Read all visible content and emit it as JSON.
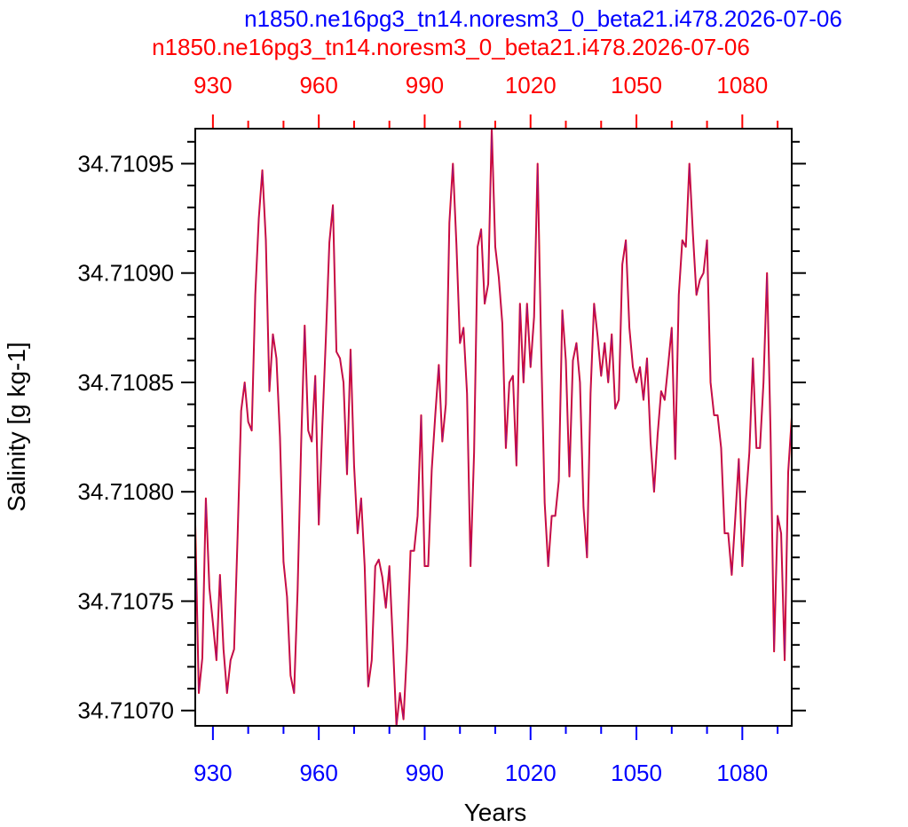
{
  "chart_data": {
    "type": "line",
    "titles": [
      {
        "text": "n1850.ne16pg3_tn14.noresm3_0_beta21.i478.2026-07-06",
        "color": "#0000ff"
      },
      {
        "text": "n1850.ne16pg3_tn14.noresm3_0_beta21.i478.2026-07-06",
        "color": "#ff0000"
      }
    ],
    "xlabel": "Years",
    "ylabel": "Salinity [g kg-1]",
    "xlim": [
      925,
      1094
    ],
    "ylim": [
      34.710693,
      34.710966
    ],
    "xticks": [
      930,
      960,
      990,
      1020,
      1050,
      1080
    ],
    "xtick_labels": [
      "930",
      "960",
      "990",
      "1020",
      "1050",
      "1080"
    ],
    "yticks": [
      34.7107,
      34.71075,
      34.7108,
      34.71085,
      34.7109,
      34.71095
    ],
    "ytick_labels": [
      "34.71070",
      "34.71075",
      "34.71080",
      "34.71085",
      "34.71090",
      "34.71095"
    ],
    "bottom_axis_color": "#0000ff",
    "top_axis_color": "#ff0000",
    "grid": false,
    "series": [
      {
        "color": "#ff0000",
        "x_start": 925,
        "values": [
          34.710785,
          34.710708,
          34.710724,
          34.710797,
          34.710756,
          34.71074,
          34.710723,
          34.710762,
          34.710728,
          34.710708,
          34.710723,
          34.710728,
          34.71078,
          34.710837,
          34.71085,
          34.710832,
          34.710828,
          34.71089,
          34.710925,
          34.710947,
          34.710915,
          34.710846,
          34.710872,
          34.710861,
          34.710825,
          34.710768,
          34.710752,
          34.710716,
          34.710708,
          34.710755,
          34.710822,
          34.710876,
          34.710828,
          34.710823,
          34.710853,
          34.710785,
          34.71083,
          34.71087,
          34.710914,
          34.710931,
          34.710864,
          34.710861,
          34.71085,
          34.710808,
          34.710865,
          34.710812,
          34.710781,
          34.710797,
          34.710766,
          34.710711,
          34.710723,
          34.710766,
          34.710769,
          34.710761,
          34.710747,
          34.710766,
          34.710731,
          34.710693,
          34.710708,
          34.710696,
          34.710728,
          34.710773,
          34.710773,
          34.710789,
          34.710835,
          34.710766,
          34.710766,
          34.71081,
          34.710835,
          34.710858,
          34.710823,
          34.71084,
          34.710923,
          34.71095,
          34.710913,
          34.710868,
          34.710875,
          34.710845,
          34.710766,
          34.710818,
          34.710912,
          34.71092,
          34.710886,
          34.710895,
          34.710966,
          34.710912,
          34.710898,
          34.710877,
          34.71082,
          34.71085,
          34.710853,
          34.710812,
          34.710886,
          34.71085,
          34.710886,
          34.710857,
          34.71088,
          34.71095,
          34.710866,
          34.710795,
          34.710766,
          34.710789,
          34.710789,
          34.710805,
          34.710883,
          34.71086,
          34.710807,
          34.71086,
          34.710868,
          34.71085,
          34.710793,
          34.71077,
          34.710845,
          34.710886,
          34.710871,
          34.710853,
          34.710868,
          34.71085,
          34.710872,
          34.710838,
          34.710842,
          34.710904,
          34.710915,
          34.710875,
          34.710857,
          34.71085,
          34.710857,
          34.710842,
          34.710861,
          34.710823,
          34.7108,
          34.710826,
          34.710846,
          34.710842,
          34.710858,
          34.710875,
          34.710815,
          34.71089,
          34.710915,
          34.710912,
          34.71095,
          34.710918,
          34.71089,
          34.710897,
          34.7109,
          34.710915,
          34.71085,
          34.710835,
          34.710835,
          34.71082,
          34.710781,
          34.710781,
          34.710762,
          34.710788,
          34.710815,
          34.710766,
          34.710796,
          34.710818,
          34.710861,
          34.71082,
          34.71082,
          34.71085,
          34.7109,
          34.710827,
          34.710727,
          34.710789,
          34.710781,
          34.710723,
          34.710809,
          34.710834
        ]
      },
      {
        "color": "#2929ff",
        "x_start": 925,
        "values": [
          34.710785,
          34.710708,
          34.710724,
          34.710797,
          34.710756,
          34.71074,
          34.710723,
          34.710762,
          34.710728,
          34.710708,
          34.710723,
          34.710728,
          34.71078,
          34.710837,
          34.71085,
          34.710832,
          34.710828,
          34.71089,
          34.710925,
          34.710947,
          34.710915,
          34.710846,
          34.710872,
          34.710861,
          34.710825,
          34.710768,
          34.710752,
          34.710716,
          34.710708,
          34.710755,
          34.710822,
          34.710876,
          34.710828,
          34.710823,
          34.710853,
          34.710785,
          34.71083,
          34.71087,
          34.710914,
          34.710931,
          34.710864,
          34.710861,
          34.71085,
          34.710808,
          34.710865,
          34.710812,
          34.710781,
          34.710797,
          34.710766,
          34.710711,
          34.710723,
          34.710766,
          34.710769,
          34.710761,
          34.710747,
          34.710766,
          34.710731,
          34.710693,
          34.710708,
          34.710696,
          34.710728,
          34.710773,
          34.710773,
          34.710789,
          34.710835,
          34.710766,
          34.710766,
          34.71081,
          34.710835,
          34.710858,
          34.710823,
          34.71084,
          34.710923,
          34.71095,
          34.710913,
          34.710868,
          34.710875,
          34.710845,
          34.710766,
          34.710818,
          34.710912,
          34.71092,
          34.710886,
          34.710895,
          34.710966,
          34.710912,
          34.710898,
          34.710877,
          34.71082,
          34.71085,
          34.710853,
          34.710812,
          34.710886,
          34.71085,
          34.710886,
          34.710857,
          34.71088,
          34.71095,
          34.710866,
          34.710795,
          34.710766,
          34.710789,
          34.710789,
          34.710805,
          34.710883,
          34.71086,
          34.710807,
          34.71086,
          34.710868,
          34.71085,
          34.710793,
          34.71077,
          34.710845,
          34.710886,
          34.710871,
          34.710853,
          34.710868,
          34.71085,
          34.710872,
          34.710838,
          34.710842,
          34.710904,
          34.710915,
          34.710875,
          34.710857,
          34.71085,
          34.710857,
          34.710842,
          34.710861,
          34.710823,
          34.7108,
          34.710826,
          34.710846,
          34.710842,
          34.710858,
          34.710875,
          34.710815,
          34.71089,
          34.710915,
          34.710912,
          34.71095,
          34.710918,
          34.71089,
          34.710897,
          34.7109,
          34.710915,
          34.71085,
          34.710835,
          34.710835,
          34.71082,
          34.710781,
          34.710781,
          34.710762,
          34.710788,
          34.710815,
          34.710766,
          34.710796,
          34.710818,
          34.710861,
          34.71082,
          34.71082,
          34.71085,
          34.7109,
          34.710827,
          34.710727,
          34.710789,
          34.710781,
          34.710723,
          34.710809,
          34.710834
        ]
      }
    ]
  }
}
